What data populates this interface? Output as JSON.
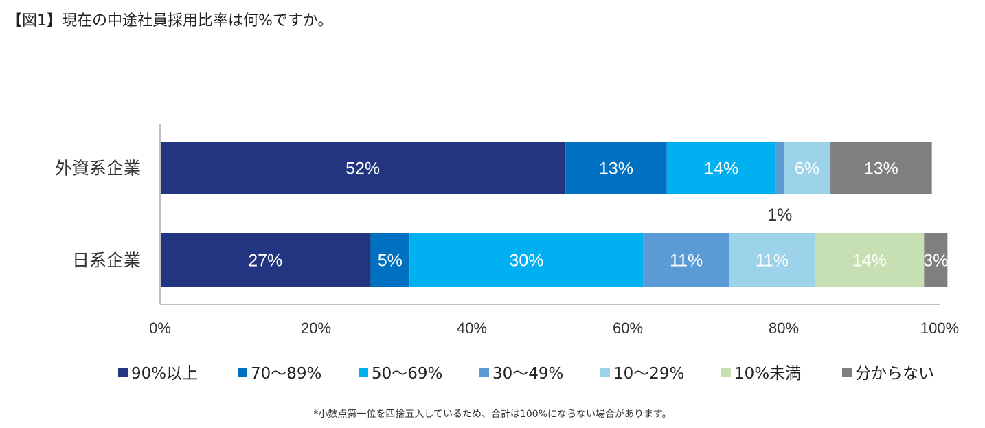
{
  "title": "【図1】現在の中途社員採用比率は何%ですか。",
  "note": "*小数点第一位を四捨五入しているため、合計は100%にならない場合があります。",
  "chart_data": {
    "type": "bar",
    "orientation": "horizontal",
    "stacked": true,
    "categories": [
      "外資系企業",
      "日系企業"
    ],
    "series": [
      {
        "name": "90%以上",
        "color": "#233580",
        "values": [
          52,
          27
        ],
        "labels": [
          "52%",
          "27%"
        ]
      },
      {
        "name": "70〜89%",
        "color": "#0070c0",
        "values": [
          13,
          5
        ],
        "labels": [
          "13%",
          "5%"
        ]
      },
      {
        "name": "50〜69%",
        "color": "#00b0f0",
        "values": [
          14,
          30
        ],
        "labels": [
          "14%",
          "30%"
        ]
      },
      {
        "name": "30〜49%",
        "color": "#5b9bd5",
        "values": [
          1,
          11
        ],
        "labels": [
          "1%",
          "11%"
        ]
      },
      {
        "name": "10〜29%",
        "color": "#9dd3ea",
        "values": [
          6,
          11
        ],
        "labels": [
          "6%",
          "11%"
        ]
      },
      {
        "name": "10%未満",
        "color": "#c6e0b4",
        "values": [
          0,
          14
        ],
        "labels": [
          "",
          "14%"
        ]
      },
      {
        "name": "分からない",
        "color": "#7f7f7f",
        "values": [
          13,
          3
        ],
        "labels": [
          "13%",
          "3%"
        ]
      }
    ],
    "xlim": [
      0,
      100
    ],
    "xticks": [
      "0%",
      "20%",
      "40%",
      "60%",
      "80%",
      "100%"
    ],
    "legend_position": "bottom",
    "grid": false
  }
}
